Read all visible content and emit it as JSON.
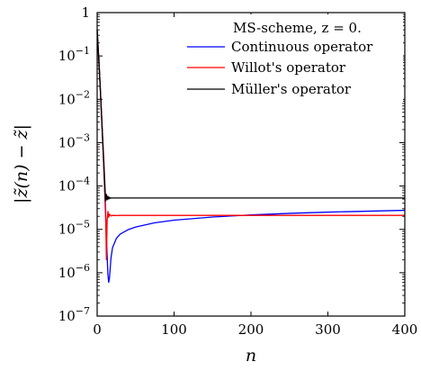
{
  "chart_data": {
    "type": "line",
    "xlabel": "n",
    "ylabel": "|z̃(n) − z̃|",
    "x_scale": "linear",
    "y_scale": "log",
    "xlim": [
      0,
      400
    ],
    "ylim": [
      1e-07,
      1
    ],
    "x_ticks": [
      0,
      100,
      200,
      300,
      400
    ],
    "x_tick_labels": [
      "0",
      "100",
      "200",
      "300",
      "400"
    ],
    "y_ticks": [
      1e-07,
      1e-06,
      1e-05,
      0.0001,
      0.001,
      0.01,
      0.1,
      1
    ],
    "y_tick_labels": [
      {
        "base": "10",
        "exp": "−7"
      },
      {
        "base": "10",
        "exp": "−6"
      },
      {
        "base": "10",
        "exp": "−5"
      },
      {
        "base": "10",
        "exp": "−4"
      },
      {
        "base": "10",
        "exp": "−3"
      },
      {
        "base": "10",
        "exp": "−2"
      },
      {
        "base": "10",
        "exp": "−1"
      },
      {
        "base": "1",
        "exp": ""
      }
    ],
    "grid": false,
    "legend_title": "MS-scheme, z = 0.",
    "legend_position": "top-right",
    "series": [
      {
        "name": "Continuous operator",
        "color": "#0000ff",
        "x": [
          0,
          2,
          4,
          6,
          8,
          10,
          12,
          14,
          15,
          16,
          18,
          20,
          25,
          30,
          40,
          50,
          75,
          100,
          150,
          200,
          250,
          300,
          350,
          400
        ],
        "y": [
          0.35,
          0.09,
          0.018,
          0.0032,
          0.00048,
          6e-05,
          6.5e-06,
          9e-07,
          6e-07,
          7.5e-07,
          2.2e-06,
          3.8e-06,
          6.2e-06,
          7.8e-06,
          9.8e-06,
          1.13e-05,
          1.42e-05,
          1.63e-05,
          1.93e-05,
          2.15e-05,
          2.34e-05,
          2.5e-05,
          2.62e-05,
          2.75e-05
        ]
      },
      {
        "name": "Willot's operator",
        "color": "#ff0000",
        "x": [
          0,
          3,
          6,
          9,
          11,
          12,
          13,
          14,
          15,
          16,
          18,
          20,
          25,
          30,
          50,
          100,
          200,
          300,
          400
        ],
        "y": [
          0.4,
          0.045,
          0.0032,
          0.0002,
          3e-05,
          2e-06,
          1.6e-05,
          2.6e-05,
          1.9e-05,
          2.25e-05,
          2.05e-05,
          2.1e-05,
          2.08e-05,
          2.1e-05,
          2.1e-05,
          2.1e-05,
          2.1e-05,
          2.1e-05,
          2.1e-05
        ]
      },
      {
        "name": "Müller's operator",
        "color": "#000000",
        "x": [
          0,
          3,
          6,
          9,
          10,
          11,
          12,
          13,
          14,
          15,
          16,
          17,
          18,
          20,
          25,
          50,
          100,
          200,
          300,
          400
        ],
        "y": [
          0.4,
          0.045,
          0.0034,
          0.00028,
          0.00011,
          4.5e-05,
          6.4e-05,
          4.8e-05,
          5.8e-05,
          5e-05,
          5.5e-05,
          5.2e-05,
          5.3e-05,
          5.3e-05,
          5.3e-05,
          5.3e-05,
          5.3e-05,
          5.3e-05,
          5.3e-05,
          5.3e-05
        ]
      }
    ]
  }
}
